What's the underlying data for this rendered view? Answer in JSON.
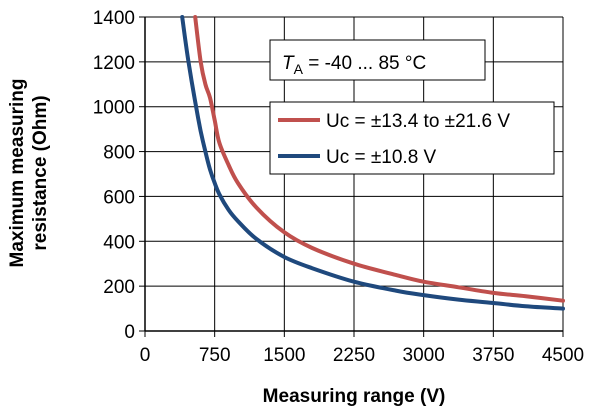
{
  "chart_data": {
    "type": "line",
    "title": "",
    "xlabel": "Measuring range  (V)",
    "ylabel_lines": [
      "Maximum measuring",
      "resistance (Ohm)"
    ],
    "xlim": [
      0,
      4500
    ],
    "ylim": [
      0,
      1400
    ],
    "xticks": [
      "0",
      "750",
      "1500",
      "2250",
      "3000",
      "3750",
      "4500"
    ],
    "yticks": [
      "0",
      "200",
      "400",
      "600",
      "800",
      "1000",
      "1200",
      "1400"
    ],
    "grid": true,
    "annotation": {
      "symbol": "T",
      "subscript": "A",
      "text": " = -40 ... 85 °C"
    },
    "legend_position": "upper-right",
    "series": [
      {
        "name": "Uc = ±13.4 to ±21.6 V",
        "color": "#c0504d",
        "x": [
          540,
          600,
          650,
          700,
          750,
          800,
          900,
          1000,
          1200,
          1500,
          1800,
          2250,
          2700,
          3000,
          3375,
          3750,
          4100,
          4500
        ],
        "y": [
          1400,
          1200,
          1100,
          1040,
          940,
          840,
          740,
          660,
          550,
          440,
          370,
          300,
          250,
          220,
          195,
          170,
          155,
          135
        ]
      },
      {
        "name": "Uc = ±10.8 V",
        "color": "#1f497d",
        "x": [
          400,
          450,
          500,
          550,
          600,
          650,
          700,
          750,
          800,
          900,
          1000,
          1200,
          1500,
          1800,
          2250,
          2700,
          3000,
          3375,
          3750,
          4100,
          4500
        ],
        "y": [
          1400,
          1250,
          1120,
          1000,
          890,
          800,
          720,
          660,
          610,
          540,
          490,
          410,
          330,
          280,
          220,
          180,
          160,
          140,
          125,
          110,
          100
        ]
      }
    ]
  }
}
